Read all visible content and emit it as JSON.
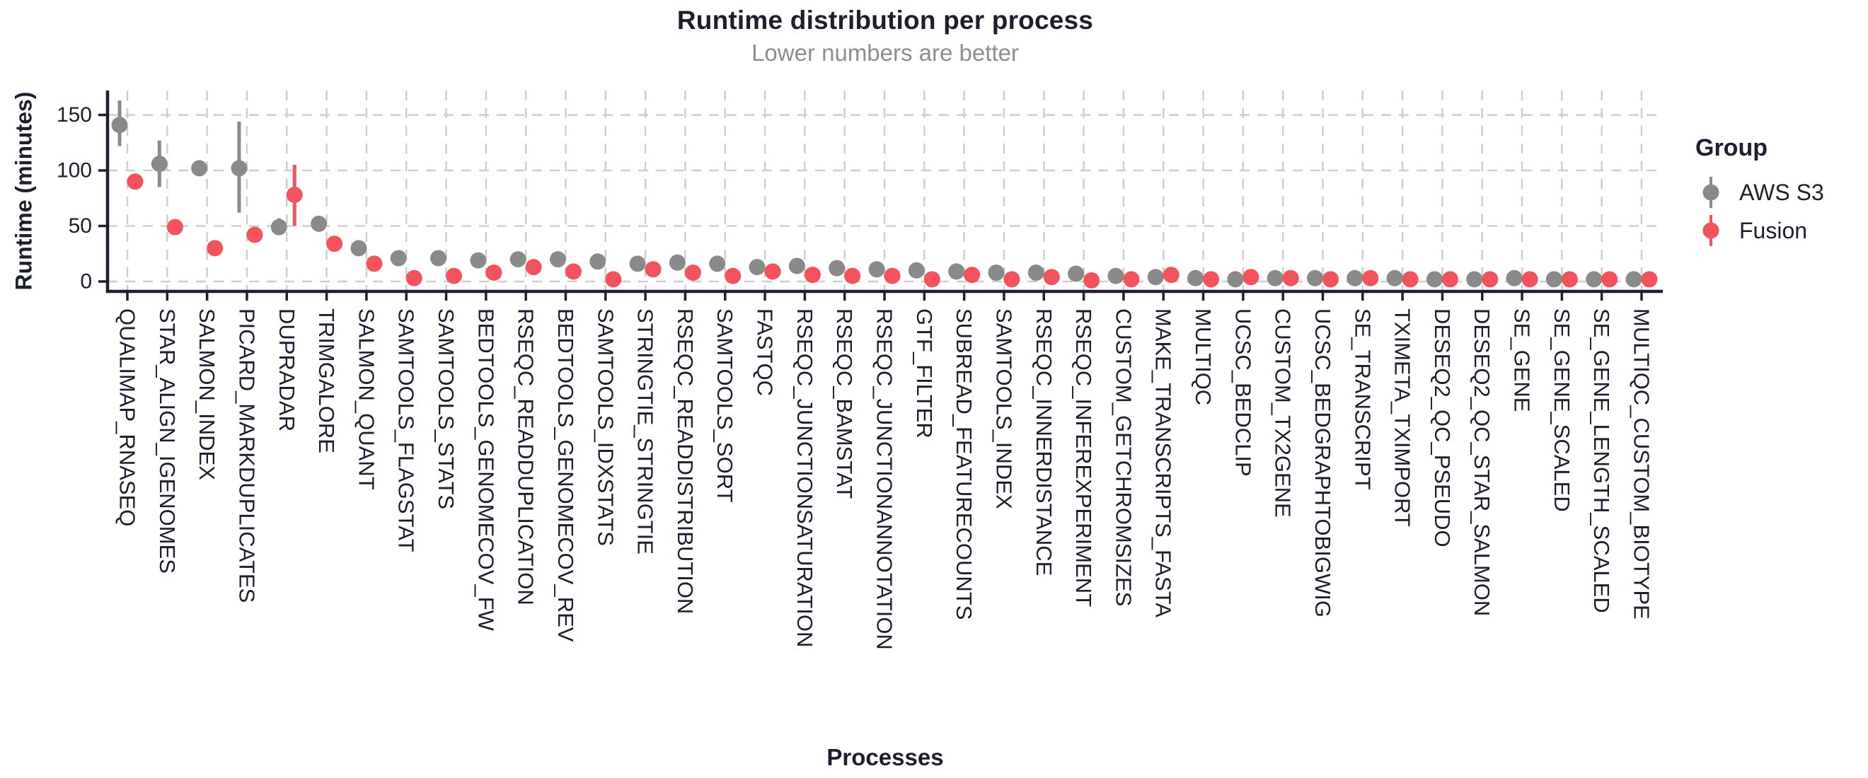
{
  "header": {
    "title": "Runtime distribution per process",
    "subtitle": "Lower numbers are better"
  },
  "axes": {
    "y_title": "Runtime (minutes)",
    "x_title": "Processes",
    "y_ticks": [
      0,
      50,
      100,
      150
    ]
  },
  "legend": {
    "title": "Group",
    "items": [
      {
        "label": "AWS S3",
        "color": "#8a8a8a"
      },
      {
        "label": "Fusion",
        "color": "#f4525c"
      }
    ]
  },
  "colors": {
    "text_dark": "#1c1f2e",
    "subtitle_gray": "#8e8e8e",
    "grid": "#cfcfcf",
    "axis": "#1c1f2e",
    "aws_s3": "#8a8a8a",
    "fusion": "#f4525c",
    "background": "#ffffff"
  },
  "chart_data": {
    "type": "scatter",
    "subtype": "pointrange-dodged",
    "title": "Runtime distribution per process",
    "subtitle": "Lower numbers are better",
    "xlabel": "Processes",
    "ylabel": "Runtime (minutes)",
    "ylim": [
      0,
      172
    ],
    "grid": "dashed-major-x-and-y",
    "legend_position": "right",
    "categories": [
      "QUALIMAP_RNASEQ",
      "STAR_ALIGN_IGENOMES",
      "SALMON_INDEX",
      "PICARD_MARKDUPLICATES",
      "DUPRADAR",
      "TRIMGALORE",
      "SALMON_QUANT",
      "SAMTOOLS_FLAGSTAT",
      "SAMTOOLS_STATS",
      "BEDTOOLS_GENOMECOV_FW",
      "RSEQC_READDUPLICATION",
      "BEDTOOLS_GENOMECOV_REV",
      "SAMTOOLS_IDXSTATS",
      "STRINGTIE_STRINGTIE",
      "RSEQC_READDISTRIBUTION",
      "SAMTOOLS_SORT",
      "FASTQC",
      "RSEQC_JUNCTIONSATURATION",
      "RSEQC_BAMSTAT",
      "RSEQC_JUNCTIONANNOTATION",
      "GTF_FILTER",
      "SUBREAD_FEATURECOUNTS",
      "SAMTOOLS_INDEX",
      "RSEQC_INNERDISTANCE",
      "RSEQC_INFEREXPERIMENT",
      "CUSTOM_GETCHROMSIZES",
      "MAKE_TRANSCRIPTS_FASTA",
      "MULTIQC",
      "UCSC_BEDCLIP",
      "CUSTOM_TX2GENE",
      "UCSC_BEDGRAPHTOBIGWIG",
      "SE_TRANSCRIPT",
      "TXIMETA_TXIMPORT",
      "DESEQ2_QC_PSEUDO",
      "DESEQ2_QC_STAR_SALMON",
      "SE_GENE",
      "SE_GENE_SCALED",
      "SE_GENE_LENGTH_SCALED",
      "MULTIQC_CUSTOM_BIOTYPE"
    ],
    "series": [
      {
        "name": "AWS S3",
        "color": "#8a8a8a",
        "values": [
          141,
          106,
          102,
          102,
          49,
          52,
          30,
          21,
          21,
          19,
          20,
          20,
          18,
          16,
          17,
          16,
          13,
          14,
          12,
          11,
          10,
          9,
          8,
          8,
          7,
          5,
          4,
          3,
          2,
          3,
          3,
          3,
          3,
          2,
          2,
          3,
          2,
          2,
          2
        ],
        "ymin": [
          122,
          85,
          102,
          62,
          43,
          45,
          30,
          17,
          17,
          19,
          20,
          20,
          15,
          16,
          17,
          13,
          13,
          14,
          12,
          11,
          10,
          9,
          6,
          8,
          7,
          5,
          4,
          3,
          2,
          3,
          3,
          3,
          3,
          2,
          2,
          3,
          2,
          2,
          2
        ],
        "ymax": [
          163,
          127,
          102,
          144,
          57,
          59,
          30,
          25,
          24,
          19,
          20,
          20,
          21,
          16,
          17,
          20,
          13,
          14,
          12,
          11,
          10,
          9,
          10,
          8,
          7,
          5,
          4,
          3,
          2,
          3,
          3,
          3,
          3,
          2,
          2,
          3,
          2,
          2,
          2
        ]
      },
      {
        "name": "Fusion",
        "color": "#f4525c",
        "values": [
          90,
          49,
          30,
          42,
          78,
          34,
          16,
          3,
          5,
          8,
          13,
          9,
          2,
          11,
          8,
          5,
          9,
          6,
          5,
          5,
          2,
          6,
          2,
          4,
          1,
          2,
          6,
          2,
          4,
          3,
          2,
          3,
          2,
          2,
          2,
          2,
          2,
          2,
          2
        ],
        "ymin": [
          84,
          46,
          30,
          42,
          50,
          34,
          16,
          3,
          5,
          8,
          13,
          9,
          2,
          11,
          8,
          5,
          9,
          6,
          5,
          5,
          2,
          6,
          2,
          4,
          1,
          2,
          6,
          2,
          4,
          3,
          2,
          3,
          2,
          2,
          2,
          2,
          2,
          2,
          2
        ],
        "ymax": [
          97,
          53,
          30,
          42,
          105,
          34,
          16,
          3,
          5,
          8,
          13,
          9,
          2,
          11,
          8,
          5,
          9,
          6,
          5,
          5,
          2,
          6,
          2,
          4,
          1,
          2,
          6,
          2,
          4,
          3,
          2,
          3,
          2,
          2,
          2,
          2,
          2,
          2,
          2
        ]
      }
    ]
  }
}
